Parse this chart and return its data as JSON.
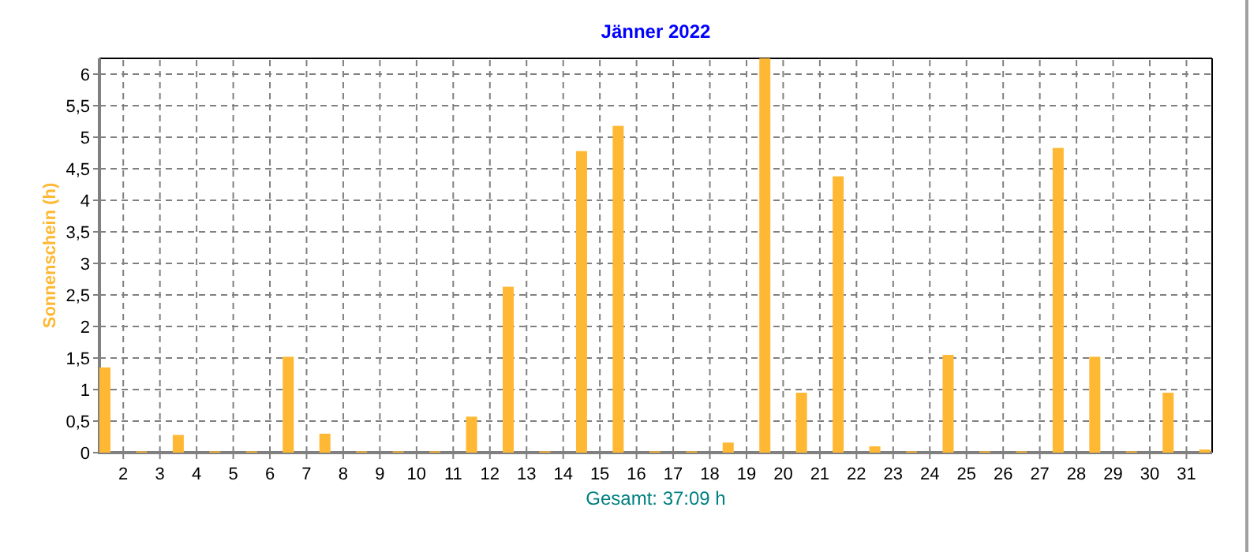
{
  "chart_data": {
    "type": "bar",
    "title": "Jänner 2022",
    "ylabel": "Sonnenschein  (h)",
    "xlabel": "Gesamt: 37:09 h",
    "x": [
      1.5,
      2.5,
      3.5,
      4.5,
      5.5,
      6.5,
      7.5,
      8.5,
      9.5,
      10.5,
      11.5,
      12.5,
      13.5,
      14.5,
      15.5,
      16.5,
      17.5,
      18.5,
      19.5,
      20.5,
      21.5,
      22.5,
      23.5,
      24.5,
      25.5,
      26.5,
      27.5,
      28.5,
      29.5,
      30.5,
      31.5
    ],
    "values": [
      1.35,
      0.02,
      0.28,
      0.02,
      0.02,
      1.52,
      0.3,
      0.02,
      0.02,
      0.02,
      0.57,
      2.63,
      0.02,
      4.78,
      5.18,
      0.02,
      0.02,
      0.16,
      6.25,
      0.95,
      4.38,
      0.1,
      0.02,
      1.55,
      0.02,
      0.02,
      4.83,
      1.52,
      0.02,
      0.95,
      0.05
    ],
    "color": "#ffb833",
    "xlim": [
      1.35,
      31.7
    ],
    "xticks": [
      2,
      3,
      4,
      5,
      6,
      7,
      8,
      9,
      10,
      11,
      12,
      13,
      14,
      15,
      16,
      17,
      18,
      19,
      20,
      21,
      22,
      23,
      24,
      25,
      26,
      27,
      28,
      29,
      30,
      31
    ],
    "ylim": [
      0,
      6.25
    ],
    "yticks": [
      {
        "value": 0,
        "label": "0"
      },
      {
        "value": 0.5,
        "label": "0,5"
      },
      {
        "value": 1,
        "label": "1"
      },
      {
        "value": 1.5,
        "label": "1,5"
      },
      {
        "value": 2,
        "label": "2"
      },
      {
        "value": 2.5,
        "label": "2,5"
      },
      {
        "value": 3,
        "label": "3"
      },
      {
        "value": 3.5,
        "label": "3,5"
      },
      {
        "value": 4,
        "label": "4"
      },
      {
        "value": 4.5,
        "label": "4,5"
      },
      {
        "value": 5,
        "label": "5"
      },
      {
        "value": 5.5,
        "label": "5,5"
      },
      {
        "value": 6,
        "label": "6"
      }
    ],
    "grid": true
  }
}
